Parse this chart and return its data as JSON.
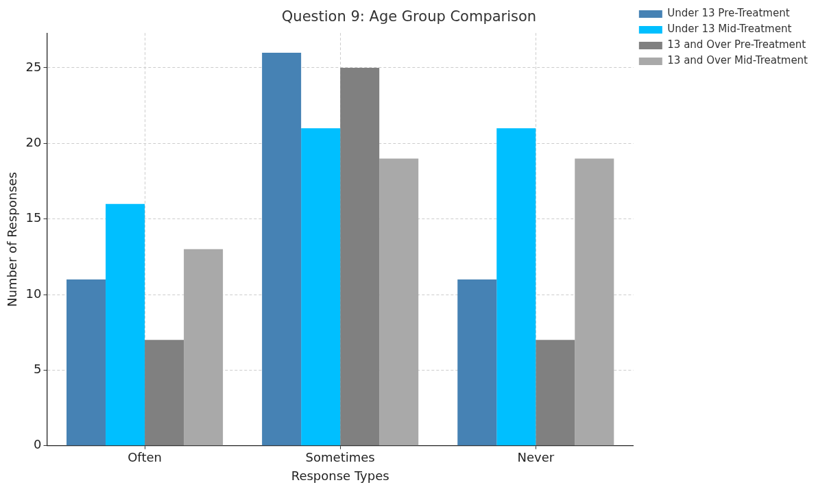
{
  "chart_data": {
    "type": "bar",
    "title": "Question 9: Age Group Comparison",
    "xlabel": "Response Types",
    "ylabel": "Number of Responses",
    "categories": [
      "Often",
      "Sometimes",
      "Never"
    ],
    "series": [
      {
        "name": "Under 13 Pre-Treatment",
        "color": "#4682b4",
        "values": [
          11,
          26,
          11
        ]
      },
      {
        "name": "Under 13 Mid-Treatment",
        "color": "#00bfff",
        "values": [
          16,
          21,
          21
        ]
      },
      {
        "name": "13 and Over Pre-Treatment",
        "color": "#808080",
        "values": [
          7,
          25,
          7
        ]
      },
      {
        "name": "13 and Over Mid-Treatment",
        "color": "#a9a9a9",
        "values": [
          13,
          19,
          19
        ]
      }
    ],
    "ylim": [
      0,
      27.3
    ],
    "yticks": [
      0,
      5,
      10,
      15,
      20,
      25
    ],
    "grid": true,
    "legend": "top right"
  }
}
